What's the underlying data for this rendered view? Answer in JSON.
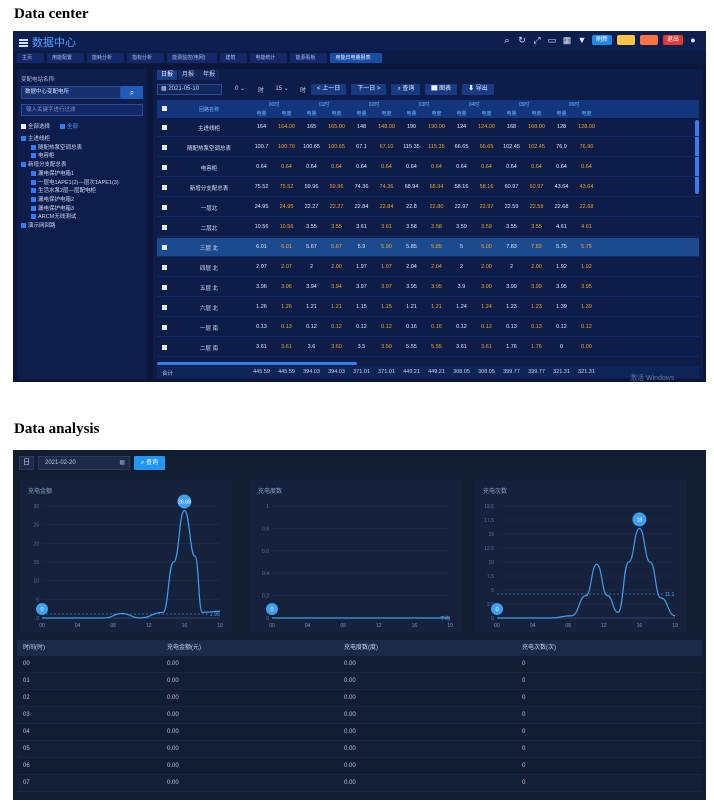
{
  "headings": {
    "data_center": "Data center",
    "data_analysis": "Data analysis"
  },
  "dc": {
    "app_title": "数据中心",
    "toolbar_pills": [
      "刷新",
      "",
      "",
      "退出"
    ],
    "tabs": [
      "主页",
      "用能配置",
      "能耗分析",
      "指标分析",
      "能源监控(电网)",
      "建筑",
      "电能统计",
      "能源看板",
      "用能日电量报表"
    ],
    "active_tab_index": 8,
    "sidebar": {
      "site_label": "变配电站名称:",
      "site_value": "数据中心变配电所",
      "filter_placeholder": "输入关键字进行过滤",
      "check_all": "全部选择",
      "check_expand": "全部",
      "tree": [
        "主进线柜",
        "随配热泵空调总表",
        "电容柜",
        "新增分支配总表",
        "漏电保护电箱1",
        "一层电1APE1(2)—层次1APE1(3)",
        "生活水泵2层—层配电柜",
        "漏电保护电箱2",
        "漏电保护电箱3",
        "ARCM无线测试",
        "演示网回路"
      ]
    },
    "main_tabs": [
      "日报",
      "月报",
      "年报"
    ],
    "filters": {
      "date": "2021-05-10",
      "hour": "0",
      "hour_unit": "时",
      "minute": "15",
      "minute_unit": "时",
      "prev": "< 上一日",
      "next": "下一日 >",
      "query": "查询",
      "chart": "图表",
      "export": "导出"
    },
    "table": {
      "name_header": "回路名称",
      "groups": [
        "00时",
        "01时",
        "02时",
        "03时",
        "04时",
        "05时",
        "06时"
      ],
      "sub_headers": [
        "电量",
        "电度"
      ],
      "rows": [
        {
          "name": "主进线柜",
          "values": [
            "164",
            "164.00",
            "165",
            "165.00",
            "148",
            "148.00",
            "190",
            "190.00",
            "124",
            "124.00",
            "168",
            "168.00",
            "128",
            "128.00"
          ]
        },
        {
          "name": "随配热泵空调总表",
          "values": [
            "100.7",
            "100.70",
            "100.65",
            "100.65",
            "67.1",
            "67.10",
            "115.35",
            "115.35",
            "66.65",
            "66.65",
            "102.45",
            "102.45",
            "76.9",
            "76.90"
          ]
        },
        {
          "name": "电容柜",
          "values": [
            "0.64",
            "0.64",
            "0.64",
            "0.64",
            "0.64",
            "0.64",
            "0.64",
            "0.64",
            "0.64",
            "0.64",
            "0.64",
            "0.64",
            "0.64",
            "0.64"
          ]
        },
        {
          "name": "新增分支配总表",
          "values": [
            "75.52",
            "75.52",
            "59.96",
            "59.96",
            "74.36",
            "74.36",
            "68.94",
            "68.94",
            "58.16",
            "58.16",
            "60.97",
            "60.97",
            "43.64",
            "43.64"
          ]
        },
        {
          "name": "一层北",
          "values": [
            "24.95",
            "24.95",
            "22.27",
            "22.27",
            "22.84",
            "22.84",
            "22.8",
            "22.80",
            "22.97",
            "22.97",
            "22.59",
            "22.59",
            "22.68",
            "22.68"
          ]
        },
        {
          "name": "二层北",
          "values": [
            "10.56",
            "10.56",
            "3.55",
            "3.55",
            "3.61",
            "3.61",
            "3.58",
            "3.58",
            "3.59",
            "3.59",
            "3.55",
            "3.55",
            "4.61",
            "4.61"
          ]
        },
        {
          "name": "三层 北",
          "values": [
            "6.01",
            "6.01",
            "5.67",
            "5.67",
            "5.9",
            "5.90",
            "5.85",
            "5.85",
            "5",
            "5.00",
            "7.83",
            "7.83",
            "5.75",
            "5.75"
          ]
        },
        {
          "name": "四层 北",
          "values": [
            "2.07",
            "2.07",
            "2",
            "2.00",
            "1.97",
            "1.97",
            "2.04",
            "2.04",
            "2",
            "2.00",
            "2",
            "2.00",
            "1.92",
            "1.92"
          ]
        },
        {
          "name": "五层 北",
          "values": [
            "3.96",
            "3.96",
            "3.94",
            "3.94",
            "3.97",
            "3.97",
            "3.95",
            "3.95",
            "3.9",
            "3.90",
            "3.99",
            "3.99",
            "3.95",
            "3.95"
          ]
        },
        {
          "name": "六层 北",
          "values": [
            "1.26",
            "1.26",
            "1.21",
            "1.21",
            "1.15",
            "1.15",
            "1.21",
            "1.21",
            "1.24",
            "1.24",
            "1.23",
            "1.23",
            "1.39",
            "1.39"
          ]
        },
        {
          "name": "一层 南",
          "values": [
            "0.13",
            "0.13",
            "0.12",
            "0.12",
            "0.12",
            "0.12",
            "0.16",
            "0.16",
            "0.12",
            "0.12",
            "0.13",
            "0.13",
            "0.12",
            "0.12"
          ]
        },
        {
          "name": "二层 南",
          "values": [
            "3.61",
            "3.61",
            "3.6",
            "3.60",
            "3.5",
            "3.50",
            "5.55",
            "5.55",
            "3.61",
            "3.61",
            "1.76",
            "1.76",
            "0",
            "0.00"
          ]
        }
      ],
      "highlight_row": 6,
      "footer_label": "合计",
      "footer": [
        "445.59",
        "445.59",
        "394.03",
        "394.03",
        "371.01",
        "371.01",
        "449.21",
        "449.21",
        "308.05",
        "308.05",
        "399.77",
        "399.77",
        "321.31",
        "321.31"
      ]
    },
    "watermark": "激活 Windows",
    "accent": "#4da3ff",
    "highlight_color": "#f5a623"
  },
  "da": {
    "toolbar": {
      "period_icon": "日",
      "date": "2021-02-20",
      "query": "查询"
    },
    "charts": [
      {
        "title": "充电金额",
        "peak_label": "26.69",
        "start_label": "0",
        "end_label": "2.96",
        "yticks": [
          "30",
          "25",
          "20",
          "15",
          "10",
          "5",
          "0"
        ],
        "xticks": [
          "00",
          "04",
          "08",
          "12",
          "16",
          "19"
        ]
      },
      {
        "title": "充电度数",
        "peak_label": "",
        "start_label": "0",
        "end_label": "平均",
        "yticks": [
          "1",
          "0.8",
          "0.6",
          "0.4",
          "0.2",
          "0"
        ],
        "xticks": [
          "00",
          "04",
          "08",
          "12",
          "16",
          "19"
        ]
      },
      {
        "title": "充电次数",
        "peak_label": "18",
        "start_label": "0",
        "end_label": "11.1",
        "yticks": [
          "19.5",
          "17.5",
          "15",
          "12.5",
          "10",
          "7.5",
          "5",
          "2.5",
          "0"
        ],
        "xticks": [
          "00",
          "04",
          "08",
          "12",
          "16",
          "19"
        ]
      }
    ],
    "table": {
      "headers": [
        "时间(时)",
        "充电金额(元)",
        "充电度数(度)",
        "充电次数(次)"
      ],
      "rows": [
        [
          "00",
          "0.00",
          "0.00",
          "0"
        ],
        [
          "01",
          "0.00",
          "0.00",
          "0"
        ],
        [
          "02",
          "0.00",
          "0.00",
          "0"
        ],
        [
          "03",
          "0.00",
          "0.00",
          "0"
        ],
        [
          "04",
          "0.00",
          "0.00",
          "0"
        ],
        [
          "05",
          "0.00",
          "0.00",
          "0"
        ],
        [
          "06",
          "0.00",
          "0.00",
          "0"
        ],
        [
          "07",
          "0.00",
          "0.00",
          "0"
        ]
      ]
    },
    "line_color": "#3f9ff0"
  }
}
